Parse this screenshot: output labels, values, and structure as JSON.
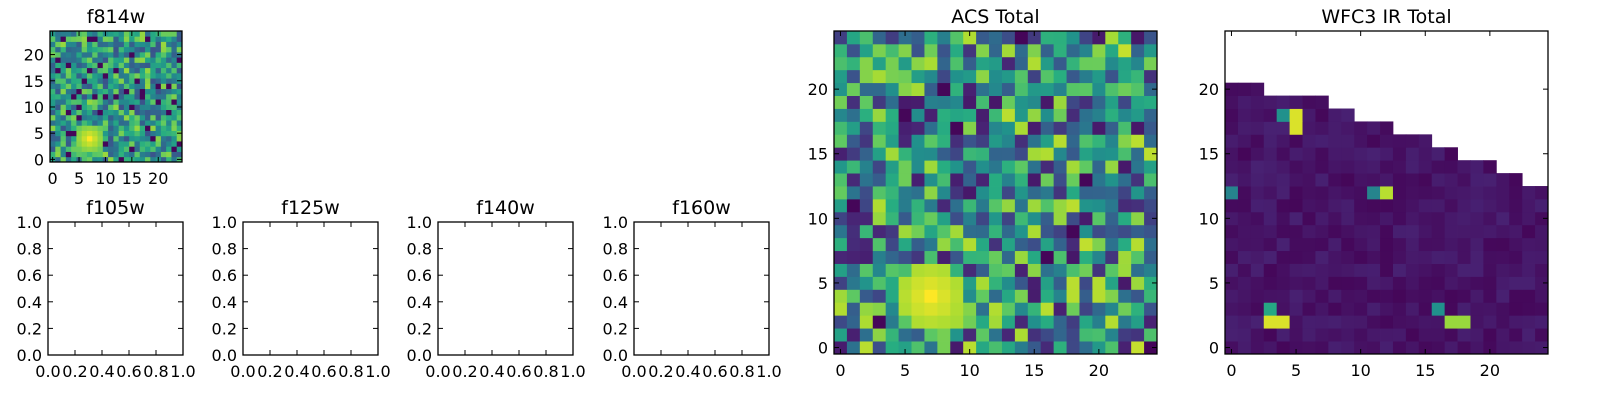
{
  "chart_data": [
    {
      "type": "heatmap",
      "title": "f814w",
      "xlim": [
        -0.5,
        24.5
      ],
      "ylim": [
        -0.5,
        24.5
      ],
      "xticks": [
        "0",
        "5",
        "10",
        "15",
        "20"
      ],
      "yticks": [
        "0",
        "5",
        "10",
        "15",
        "20"
      ],
      "grid_size": 25,
      "origin": "lower",
      "colormap": "viridis",
      "description_values": "per-pixel noise image (values 0-1), bright source near (7,4)"
    },
    {
      "type": "empty",
      "title": "f105w",
      "xlim": [
        0,
        1
      ],
      "ylim": [
        0,
        1
      ],
      "xticks": [
        "0.0",
        "0.2",
        "0.4",
        "0.6",
        "0.8",
        "1.0"
      ],
      "yticks": [
        "0.0",
        "0.2",
        "0.4",
        "0.6",
        "0.8",
        "1.0"
      ]
    },
    {
      "type": "empty",
      "title": "f125w",
      "xlim": [
        0,
        1
      ],
      "ylim": [
        0,
        1
      ],
      "xticks": [
        "0.0",
        "0.2",
        "0.4",
        "0.6",
        "0.8",
        "1.0"
      ],
      "yticks": [
        "0.0",
        "0.2",
        "0.4",
        "0.6",
        "0.8",
        "1.0"
      ]
    },
    {
      "type": "empty",
      "title": "f140w",
      "xlim": [
        0,
        1
      ],
      "ylim": [
        0,
        1
      ],
      "xticks": [
        "0.0",
        "0.2",
        "0.4",
        "0.6",
        "0.8",
        "1.0"
      ],
      "yticks": [
        "0.0",
        "0.2",
        "0.4",
        "0.6",
        "0.8",
        "1.0"
      ]
    },
    {
      "type": "empty",
      "title": "f160w",
      "xlim": [
        0,
        1
      ],
      "ylim": [
        0,
        1
      ],
      "xticks": [
        "0.0",
        "0.2",
        "0.4",
        "0.6",
        "0.8",
        "1.0"
      ],
      "yticks": [
        "0.0",
        "0.2",
        "0.4",
        "0.6",
        "0.8",
        "1.0"
      ]
    },
    {
      "type": "heatmap",
      "title": "ACS Total",
      "xlim": [
        -0.5,
        24.5
      ],
      "ylim": [
        -0.5,
        24.5
      ],
      "xticks": [
        "0",
        "5",
        "10",
        "15",
        "20"
      ],
      "yticks": [
        "0",
        "5",
        "10",
        "15",
        "20"
      ],
      "grid_size": 25,
      "origin": "lower",
      "colormap": "viridis",
      "bright_source": [
        7,
        4
      ],
      "dark_pixels": [
        [
          14,
          24
        ],
        [
          8,
          20
        ],
        [
          5,
          18
        ],
        [
          9,
          17
        ],
        [
          19,
          13
        ],
        [
          1,
          11
        ],
        [
          18,
          9
        ],
        [
          16,
          7
        ],
        [
          3,
          2
        ],
        [
          24,
          0
        ]
      ]
    },
    {
      "type": "heatmap",
      "title": "WFC3 IR Total",
      "xlim": [
        -0.5,
        24.5
      ],
      "ylim": [
        -0.5,
        24.5
      ],
      "xticks": [
        "0",
        "5",
        "10",
        "15",
        "20"
      ],
      "yticks": [
        "0",
        "5",
        "10",
        "15",
        "20"
      ],
      "grid_size": 25,
      "origin": "lower",
      "colormap": "viridis",
      "row_extents": [
        25,
        25,
        25,
        25,
        25,
        25,
        25,
        25,
        25,
        25,
        25,
        25,
        25,
        23,
        21,
        18,
        16,
        13,
        10,
        8,
        3,
        0,
        0,
        0,
        0
      ],
      "bright_pixels": [
        [
          3,
          2,
          0.95
        ],
        [
          4,
          2,
          0.95
        ],
        [
          3,
          3,
          0.6
        ],
        [
          17,
          2,
          0.85
        ],
        [
          18,
          2,
          0.85
        ],
        [
          16,
          3,
          0.5
        ],
        [
          0,
          12,
          0.45
        ],
        [
          11,
          12,
          0.45
        ],
        [
          12,
          12,
          0.9
        ],
        [
          4,
          18,
          0.5
        ],
        [
          5,
          18,
          0.95
        ],
        [
          5,
          17,
          0.95
        ]
      ]
    }
  ]
}
